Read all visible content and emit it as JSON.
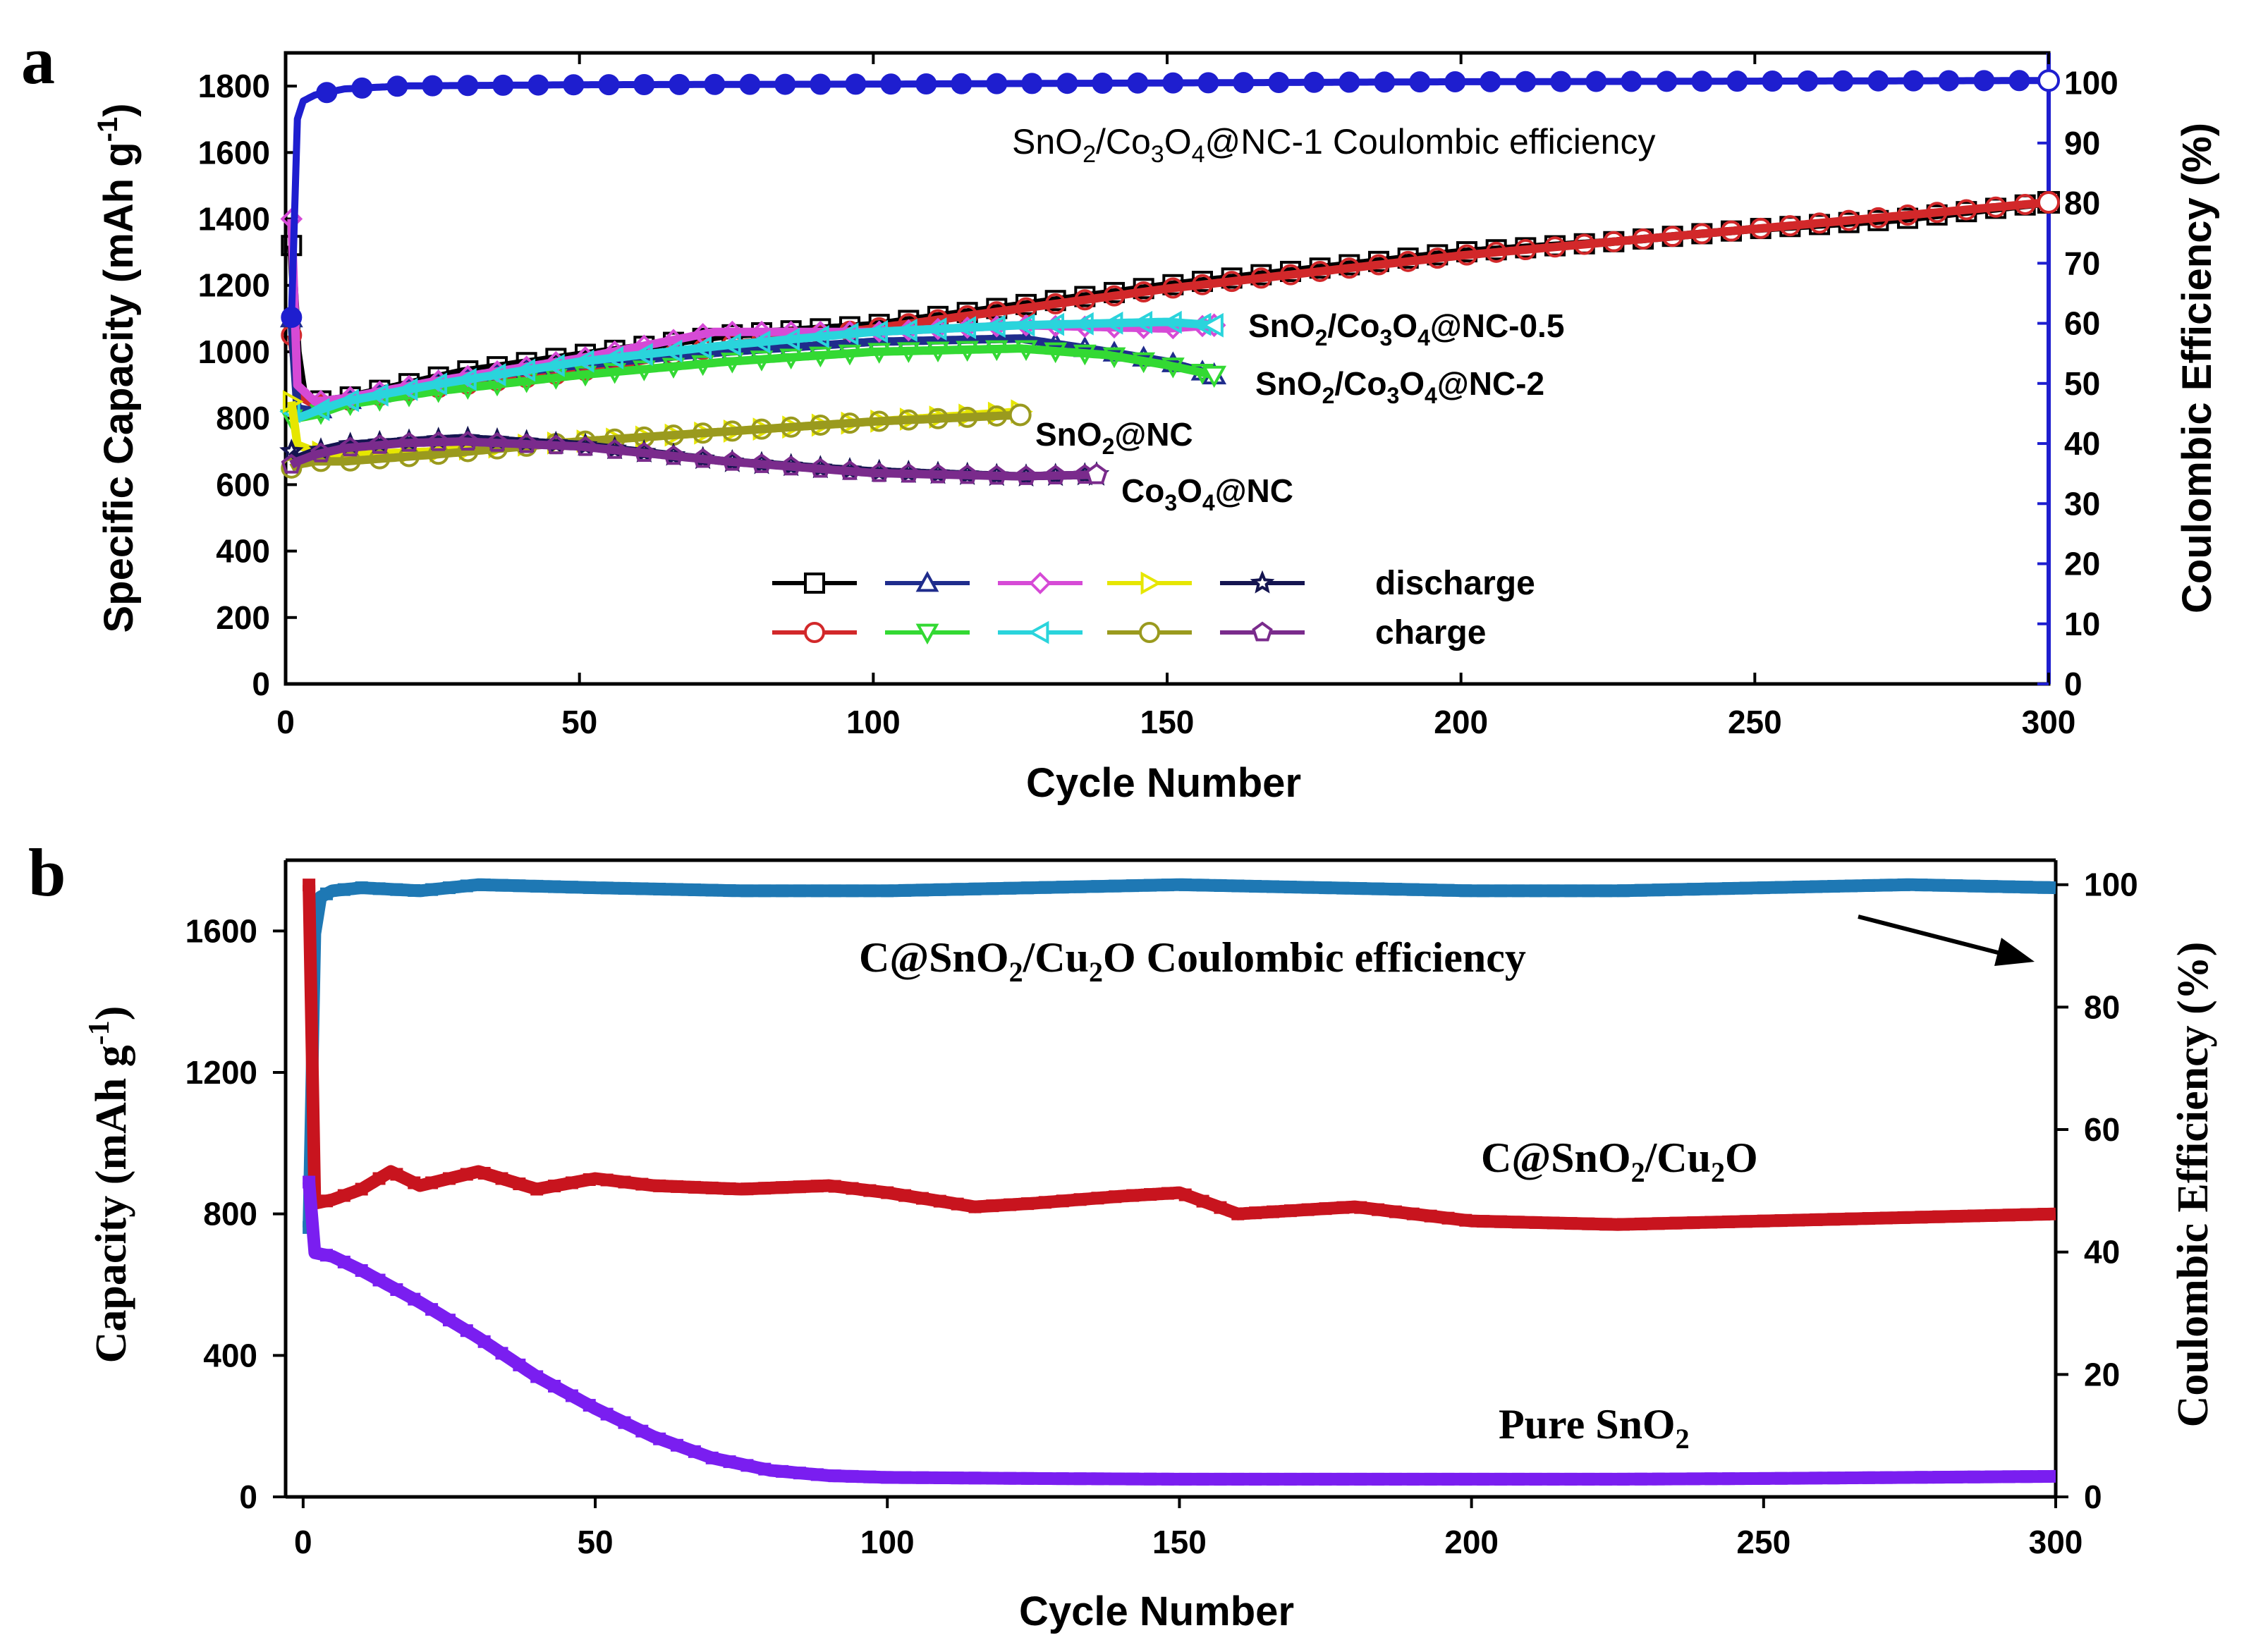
{
  "chart_data": [
    {
      "panel": "a",
      "type": "line",
      "xlabel": "Cycle Number",
      "ylabel": "Specific Capacity (mAh g-1)",
      "y2label": "Coulombic Efficiency (%)",
      "xlim": [
        0,
        300
      ],
      "ylim": [
        0,
        1900
      ],
      "y2lim": [
        0,
        105
      ],
      "xticks": [
        0,
        50,
        100,
        150,
        200,
        250,
        300
      ],
      "yticks": [
        0,
        200,
        400,
        600,
        800,
        1000,
        1200,
        1400,
        1600,
        1800
      ],
      "y2ticks": [
        0,
        10,
        20,
        30,
        40,
        50,
        60,
        70,
        80,
        90,
        100
      ],
      "legend": {
        "discharge": "discharge",
        "charge": "charge"
      },
      "series": [
        {
          "name": "SnO2/Co3O4@NC-1 discharge",
          "axis": "left",
          "color": "#000000",
          "marker": "square",
          "x": [
            1,
            2,
            3,
            5,
            10,
            20,
            30,
            50,
            75,
            100,
            125,
            150,
            175,
            200,
            225,
            250,
            275,
            300
          ],
          "values": [
            1320,
            1000,
            880,
            850,
            860,
            900,
            940,
            990,
            1050,
            1080,
            1140,
            1200,
            1250,
            1300,
            1330,
            1370,
            1400,
            1450
          ]
        },
        {
          "name": "SnO2/Co3O4@NC-1 charge",
          "axis": "left",
          "color": "#d2282a",
          "marker": "circle",
          "x": [
            1,
            2,
            3,
            5,
            10,
            20,
            30,
            50,
            75,
            100,
            125,
            150,
            175,
            200,
            225,
            250,
            275,
            300
          ],
          "values": [
            1050,
            900,
            860,
            840,
            850,
            880,
            900,
            940,
            1020,
            1070,
            1130,
            1190,
            1240,
            1290,
            1330,
            1370,
            1410,
            1450
          ]
        },
        {
          "name": "SnO2/Co3O4@NC-2 discharge",
          "axis": "left",
          "color": "#1f2c8c",
          "marker": "triangle-up",
          "x": [
            1,
            2,
            5,
            10,
            25,
            50,
            75,
            100,
            125,
            140,
            150,
            158
          ],
          "values": [
            1100,
            830,
            820,
            850,
            910,
            960,
            1000,
            1030,
            1040,
            1000,
            970,
            930
          ]
        },
        {
          "name": "SnO2/Co3O4@NC-2 charge",
          "axis": "left",
          "color": "#33d933",
          "marker": "triangle-down",
          "x": [
            1,
            2,
            5,
            10,
            25,
            50,
            75,
            100,
            125,
            140,
            150,
            158
          ],
          "values": [
            800,
            800,
            810,
            840,
            880,
            930,
            970,
            1000,
            1010,
            990,
            960,
            930
          ]
        },
        {
          "name": "SnO2/Co3O4@NC-0.5 discharge",
          "axis": "left",
          "color": "#d64ad6",
          "marker": "diamond",
          "x": [
            1,
            2,
            5,
            10,
            25,
            50,
            73,
            100,
            125,
            150,
            158
          ],
          "values": [
            1400,
            900,
            850,
            860,
            910,
            980,
            1060,
            1060,
            1080,
            1070,
            1080
          ]
        },
        {
          "name": "SnO2/Co3O4@NC-0.5 charge",
          "axis": "left",
          "color": "#2ad4dc",
          "marker": "triangle-left",
          "x": [
            1,
            2,
            5,
            10,
            25,
            50,
            75,
            100,
            125,
            150,
            158
          ],
          "values": [
            820,
            800,
            820,
            850,
            900,
            970,
            1020,
            1060,
            1080,
            1090,
            1080
          ]
        },
        {
          "name": "SnO2@NC discharge",
          "axis": "left",
          "color": "#e6e600",
          "marker": "triangle-right",
          "x": [
            1,
            2,
            5,
            10,
            25,
            50,
            75,
            100,
            125
          ],
          "values": [
            850,
            720,
            700,
            690,
            700,
            730,
            760,
            790,
            820
          ]
        },
        {
          "name": "SnO2@NC charge",
          "axis": "left",
          "color": "#9a9a1e",
          "marker": "circle",
          "x": [
            1,
            2,
            5,
            10,
            25,
            50,
            75,
            100,
            125
          ],
          "values": [
            650,
            660,
            670,
            670,
            690,
            730,
            760,
            790,
            810
          ]
        },
        {
          "name": "Co3O4@NC discharge",
          "axis": "left",
          "color": "#141450",
          "marker": "star",
          "x": [
            1,
            2,
            5,
            10,
            20,
            30,
            50,
            75,
            100,
            125,
            138
          ],
          "values": [
            700,
            680,
            700,
            720,
            730,
            740,
            720,
            670,
            640,
            625,
            630
          ]
        },
        {
          "name": "Co3O4@NC charge",
          "axis": "left",
          "color": "#7a2b8c",
          "marker": "pentagon",
          "x": [
            1,
            2,
            5,
            10,
            20,
            30,
            50,
            75,
            100,
            125,
            138
          ],
          "values": [
            660,
            670,
            690,
            710,
            725,
            730,
            715,
            670,
            635,
            625,
            630
          ]
        },
        {
          "name": "SnO2/Co3O4@NC-1 Coulombic efficiency",
          "axis": "right",
          "color": "#1e1ecf",
          "marker": "circle",
          "x": [
            1,
            2,
            3,
            5,
            10,
            20,
            50,
            100,
            150,
            200,
            250,
            300
          ],
          "values": [
            61,
            94,
            97,
            98,
            99,
            99.5,
            99.7,
            99.8,
            100,
            100.2,
            100.3,
            100.4
          ]
        }
      ],
      "annotations": [
        {
          "text": "SnO2/Co3O4@NC-1  Coulombic efficiency"
        },
        {
          "text": "SnO2/Co3O4@NC-0.5"
        },
        {
          "text": "SnO2/Co3O4@NC-2"
        },
        {
          "text": "SnO2@NC"
        },
        {
          "text": "Co3O4@NC"
        }
      ]
    },
    {
      "panel": "b",
      "type": "scatter",
      "xlabel": "Cycle Number",
      "ylabel": "Capacity (mAh g-1)",
      "y2label": "Coulombic Efficiency (%)",
      "xlim": [
        -3,
        300
      ],
      "ylim": [
        0,
        1800
      ],
      "y2lim": [
        0,
        104
      ],
      "xticks": [
        0,
        50,
        100,
        150,
        200,
        250,
        300
      ],
      "yticks": [
        0,
        400,
        800,
        1200,
        1600
      ],
      "y2ticks": [
        0,
        20,
        40,
        60,
        80,
        100
      ],
      "series": [
        {
          "name": "C@SnO2/Cu2O Coulombic efficiency",
          "axis": "right",
          "color": "#1e78b4",
          "x": [
            1,
            2,
            3,
            5,
            10,
            20,
            30,
            50,
            75,
            100,
            125,
            150,
            175,
            200,
            225,
            250,
            275,
            300
          ],
          "values": [
            44,
            92,
            98,
            99,
            99.5,
            99,
            100,
            99.5,
            99,
            99,
            99.5,
            100,
            99.5,
            99,
            99,
            99.5,
            100,
            99.5
          ]
        },
        {
          "name": "C@SnO2/Cu2O",
          "axis": "left",
          "color": "#c8141e",
          "x": [
            1,
            2,
            5,
            10,
            15,
            20,
            30,
            40,
            50,
            60,
            75,
            90,
            100,
            115,
            125,
            140,
            150,
            160,
            180,
            200,
            225,
            250,
            275,
            300
          ],
          "values": [
            1730,
            830,
            840,
            870,
            920,
            880,
            920,
            870,
            900,
            880,
            870,
            880,
            860,
            820,
            830,
            850,
            860,
            800,
            820,
            780,
            770,
            780,
            790,
            800
          ]
        },
        {
          "name": "Pure SnO2",
          "axis": "left",
          "color": "#7a1ef0",
          "x": [
            1,
            2,
            5,
            10,
            20,
            30,
            40,
            50,
            60,
            70,
            80,
            90,
            100,
            125,
            150,
            175,
            200,
            225,
            250,
            275,
            300
          ],
          "values": [
            890,
            690,
            680,
            640,
            550,
            450,
            340,
            250,
            170,
            110,
            75,
            60,
            55,
            52,
            50,
            50,
            50,
            50,
            52,
            55,
            58
          ]
        }
      ],
      "annotations": [
        {
          "text": "C@SnO2/Cu2O  Coulombic efficiency"
        },
        {
          "text": "C@SnO2/Cu2O"
        },
        {
          "text": "Pure SnO2"
        }
      ]
    }
  ]
}
